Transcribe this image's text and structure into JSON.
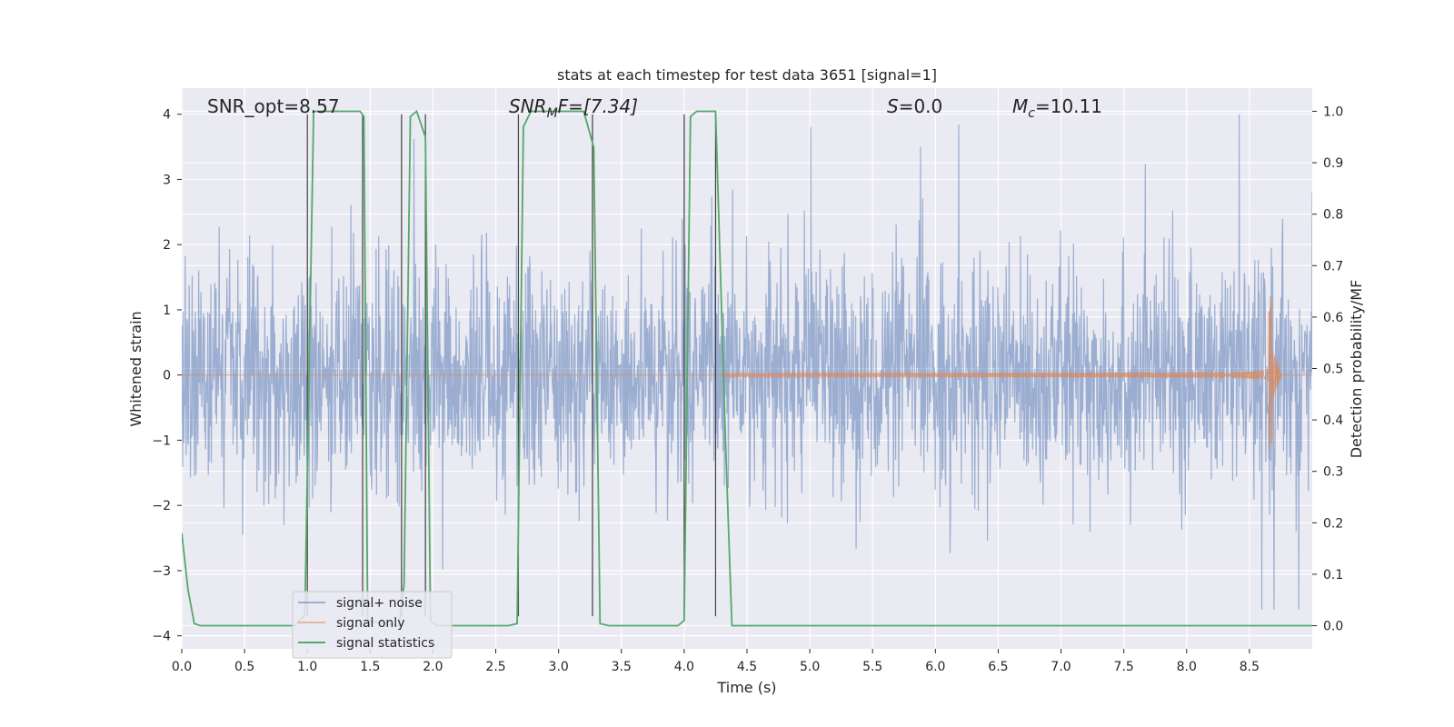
{
  "chart_data": {
    "type": "line",
    "title": "stats at each timestep for test data 3651 [signal=1]",
    "xlabel": "Time (s)",
    "ylabel_left": "Whitened strain",
    "ylabel_right": "Detection probability/MF",
    "xlim": [
      0.0,
      9.0
    ],
    "ylim_left": [
      -4.2,
      4.4
    ],
    "ylim_right": [
      -0.045,
      1.045
    ],
    "grid": true,
    "legend_position": "lower-left",
    "x_ticks": [
      "0.0",
      "0.5",
      "1.0",
      "1.5",
      "2.0",
      "2.5",
      "3.0",
      "3.5",
      "4.0",
      "4.5",
      "5.0",
      "5.5",
      "6.0",
      "6.5",
      "7.0",
      "7.5",
      "8.0",
      "8.5"
    ],
    "y_ticks_left": [
      "4",
      "3",
      "2",
      "1",
      "0",
      "−1",
      "−2",
      "−3",
      "−4"
    ],
    "y_ticks_right": [
      "1.0",
      "0.9",
      "0.8",
      "0.7",
      "0.6",
      "0.5",
      "0.4",
      "0.3",
      "0.2",
      "0.1",
      "0.0"
    ],
    "annotations": {
      "snr_opt": "SNR_opt=8.57",
      "snr_mf_prefix": "SNR",
      "snr_mf_sub": "M",
      "snr_mf_suffix": "F=[7.34]",
      "s_prefix": "S",
      "s_suffix": "=0.0",
      "mc_prefix": "M",
      "mc_sub": "c",
      "mc_suffix": "=10.11"
    },
    "series": [
      {
        "name": "signal+ noise",
        "color": "#4c72b0",
        "axis": "left",
        "description_of_shape": "dense noise",
        "typical_amplitude": 1.7,
        "peak_values": {
          "max": 4.0,
          "min": -3.6
        }
      },
      {
        "name": "signal only",
        "color": "#dd8452",
        "axis": "left",
        "chirp_start": 4.3,
        "chirp_merger": 8.68,
        "merger_peak": 1.35,
        "merger_trough": -1.3
      },
      {
        "name": "signal statistics",
        "color": "#55a868",
        "axis": "right",
        "x": [
          0.0,
          0.05,
          0.1,
          0.15,
          0.9,
          0.98,
          1.05,
          1.1,
          1.42,
          1.45,
          1.48,
          1.73,
          1.77,
          1.82,
          1.87,
          1.94,
          1.98,
          2.03,
          2.6,
          2.67,
          2.72,
          2.78,
          3.2,
          3.28,
          3.33,
          3.4,
          3.95,
          4.0,
          4.05,
          4.1,
          4.25,
          4.33,
          4.38,
          4.45,
          9.0
        ],
        "y": [
          0.18,
          0.07,
          0.004,
          0.0,
          0.0,
          0.02,
          1.0,
          1.0,
          1.0,
          0.99,
          0.01,
          0.0,
          0.08,
          0.99,
          1.0,
          0.95,
          0.01,
          0.0,
          0.0,
          0.004,
          0.97,
          1.0,
          1.0,
          0.93,
          0.004,
          0.0,
          0.0,
          0.01,
          0.99,
          1.0,
          1.0,
          0.35,
          0.0,
          0.0,
          0.0
        ]
      },
      {
        "name": "vertical markers",
        "color": "#404040",
        "axis": "left",
        "x": [
          1.0,
          1.44,
          1.75,
          1.94,
          2.68,
          3.27,
          4.0,
          4.25
        ],
        "y_top": 4.0,
        "y_bottom": -3.7
      }
    ]
  },
  "legend": {
    "items": [
      {
        "label": "signal+ noise",
        "color": "#4c72b0"
      },
      {
        "label": "signal only",
        "color": "#dd8452"
      },
      {
        "label": "signal statistics",
        "color": "#55a868"
      }
    ]
  }
}
